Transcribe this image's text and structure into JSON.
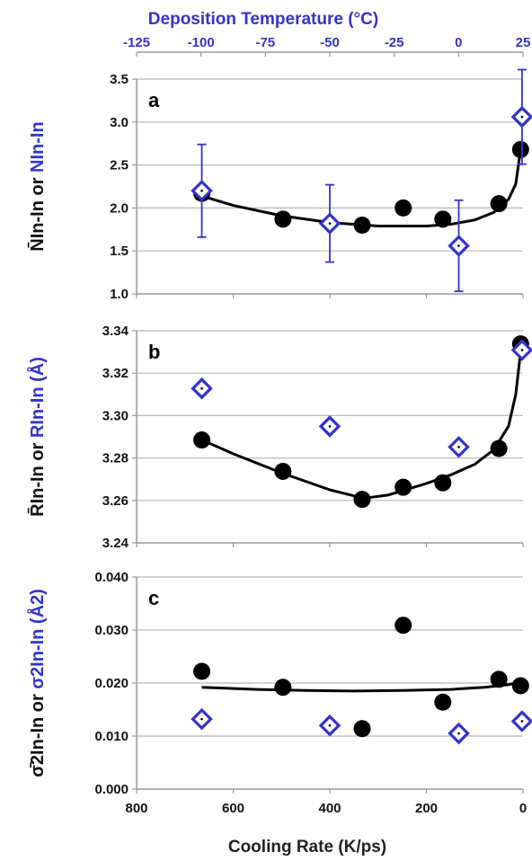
{
  "chart_data": {
    "type": "scatter",
    "top_axis": {
      "title": "Deposition Temperature (°C)",
      "ticks": [
        "-125",
        "-100",
        "-75",
        "-50",
        "-25",
        "0",
        "25"
      ],
      "range": [
        -125,
        25
      ],
      "color": "#3333cc"
    },
    "bottom_axis": {
      "title": "Cooling Rate (K/ps)",
      "ticks": [
        "800",
        "600",
        "400",
        "200",
        "0"
      ],
      "range": [
        800,
        0
      ]
    },
    "panels": [
      {
        "letter": "a",
        "ylabel_black": "N̄In-In",
        "ylabel_or": "or",
        "ylabel_blue": "NIn-In",
        "ylim": [
          1.0,
          3.5
        ],
        "yticks": [
          1.0,
          1.5,
          2.0,
          2.5,
          3.0,
          3.5
        ],
        "ytick_labels": [
          "1.0",
          "1.5",
          "2.0",
          "2.5",
          "3.0",
          "3.5"
        ],
        "black_points": {
          "x": [
            665,
            497,
            333,
            248,
            166,
            50,
            5
          ],
          "y": [
            2.17,
            1.87,
            1.8,
            2.0,
            1.87,
            2.05,
            2.68
          ]
        },
        "blue_points": {
          "x": [
            665,
            400,
            133,
            2
          ],
          "y": [
            2.2,
            1.82,
            1.56,
            3.06
          ],
          "err": [
            0.54,
            0.45,
            0.53,
            0.55
          ]
        },
        "fit": {
          "x": [
            665,
            600,
            500,
            400,
            300,
            200,
            150,
            100,
            60,
            30,
            15,
            5
          ],
          "y": [
            2.14,
            2.03,
            1.91,
            1.83,
            1.79,
            1.79,
            1.81,
            1.86,
            1.95,
            2.1,
            2.28,
            2.68
          ]
        }
      },
      {
        "letter": "b",
        "ylabel_black": "R̄In-In",
        "ylabel_or": "or",
        "ylabel_blue": "RIn-In (Å)",
        "ylim": [
          3.24,
          3.34
        ],
        "yticks": [
          3.24,
          3.26,
          3.28,
          3.3,
          3.32,
          3.34
        ],
        "ytick_labels": [
          "3.24",
          "3.26",
          "3.28",
          "3.30",
          "3.32",
          "3.34"
        ],
        "black_points": {
          "x": [
            665,
            497,
            333,
            248,
            166,
            50,
            5
          ],
          "y": [
            3.2885,
            3.2737,
            3.2605,
            3.2662,
            3.2683,
            3.2845,
            3.3338
          ]
        },
        "blue_points": {
          "x": [
            665,
            400,
            133,
            2
          ],
          "y": [
            3.3128,
            3.2949,
            3.2852,
            3.3309
          ]
        },
        "fit": {
          "x": [
            665,
            600,
            500,
            400,
            330,
            280,
            200,
            150,
            100,
            60,
            30,
            15,
            5
          ],
          "y": [
            3.2885,
            3.282,
            3.273,
            3.265,
            3.261,
            3.2625,
            3.268,
            3.272,
            3.277,
            3.284,
            3.295,
            3.31,
            3.33
          ]
        }
      },
      {
        "letter": "c",
        "ylabel_black": "σ̄2In-In",
        "ylabel_or": "or",
        "ylabel_blue": "σ2In-In (Å2)",
        "ylim": [
          0.0,
          0.04
        ],
        "yticks": [
          0.0,
          0.01,
          0.02,
          0.03,
          0.04
        ],
        "ytick_labels": [
          "0.000",
          "0.010",
          "0.020",
          "0.030",
          "0.040"
        ],
        "black_points": {
          "x": [
            665,
            497,
            333,
            248,
            166,
            50,
            5
          ],
          "y": [
            0.0222,
            0.0192,
            0.0114,
            0.0309,
            0.0164,
            0.0207,
            0.0195
          ]
        },
        "blue_points": {
          "x": [
            665,
            400,
            133,
            2
          ],
          "y": [
            0.0132,
            0.012,
            0.0105,
            0.0128
          ]
        },
        "fit": {
          "x": [
            665,
            550,
            450,
            350,
            250,
            150,
            80,
            30,
            5
          ],
          "y": [
            0.0192,
            0.0188,
            0.0186,
            0.0185,
            0.0186,
            0.0188,
            0.0192,
            0.0197,
            0.0201
          ]
        }
      }
    ]
  }
}
